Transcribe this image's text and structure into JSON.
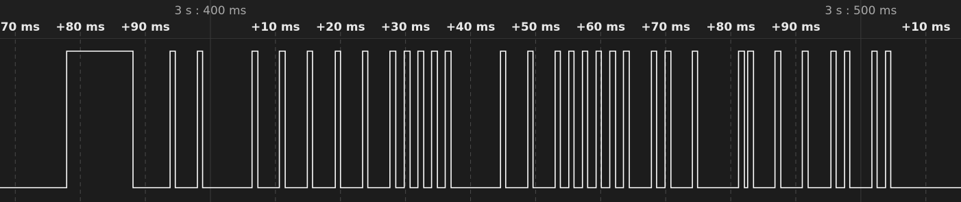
{
  "timeline": {
    "xlim": [
      367.65,
      515.4
    ],
    "major_ticks": [
      {
        "value": 400,
        "label": "3 s : 400 ms"
      },
      {
        "value": 500,
        "label": "3 s : 500 ms"
      }
    ],
    "ticks": [
      {
        "value": 370,
        "label": "+70 ms"
      },
      {
        "value": 380,
        "label": "+80 ms"
      },
      {
        "value": 390,
        "label": "+90 ms"
      },
      {
        "value": 410,
        "label": "+10 ms"
      },
      {
        "value": 420,
        "label": "+20 ms"
      },
      {
        "value": 430,
        "label": "+30 ms"
      },
      {
        "value": 440,
        "label": "+40 ms"
      },
      {
        "value": 450,
        "label": "+50 ms"
      },
      {
        "value": 460,
        "label": "+60 ms"
      },
      {
        "value": 470,
        "label": "+70 ms"
      },
      {
        "value": 480,
        "label": "+80 ms"
      },
      {
        "value": 490,
        "label": "+90 ms"
      },
      {
        "value": 510,
        "label": "+10 ms"
      }
    ],
    "pulses": [
      [
        377.9,
        388.1
      ],
      [
        393.8,
        394.6
      ],
      [
        398.0,
        398.8
      ],
      [
        406.4,
        407.3
      ],
      [
        410.6,
        411.5
      ],
      [
        414.9,
        415.7
      ],
      [
        419.2,
        420.0
      ],
      [
        423.4,
        424.2
      ],
      [
        427.6,
        428.5
      ],
      [
        429.8,
        430.7
      ],
      [
        431.9,
        432.8
      ],
      [
        434.0,
        434.9
      ],
      [
        436.1,
        437.0
      ],
      [
        444.6,
        445.4
      ],
      [
        448.8,
        449.6
      ],
      [
        453.0,
        453.8
      ],
      [
        455.1,
        455.9
      ],
      [
        457.2,
        458.0
      ],
      [
        459.3,
        460.1
      ],
      [
        461.4,
        462.3
      ],
      [
        463.5,
        464.4
      ],
      [
        467.8,
        468.6
      ],
      [
        469.9,
        470.8
      ],
      [
        474.1,
        474.9
      ],
      [
        481.2,
        482.1
      ],
      [
        482.6,
        483.5
      ],
      [
        486.8,
        487.7
      ],
      [
        491.0,
        491.9
      ],
      [
        495.4,
        496.2
      ],
      [
        497.5,
        498.3
      ],
      [
        501.7,
        502.5
      ],
      [
        503.8,
        504.6
      ]
    ]
  }
}
